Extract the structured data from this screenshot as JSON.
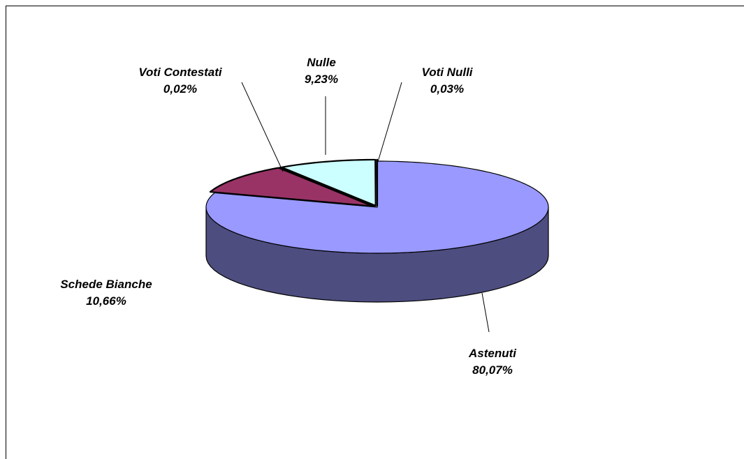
{
  "chart_data": {
    "type": "pie",
    "style": "3d-exploded",
    "slices": [
      {
        "name": "Astenuti",
        "value_label": "80,07%",
        "value": 80.07,
        "color": "#9999ff",
        "side_color": "#4d4d80"
      },
      {
        "name": "Schede Bianche",
        "value_label": "10,66%",
        "value": 10.66,
        "color": "#993366",
        "side_color": "#4d1a33"
      },
      {
        "name": "Voti Contestati",
        "value_label": "0,02%",
        "value": 0.02,
        "color": "#ffffcc",
        "side_color": "#808066"
      },
      {
        "name": "Nulle",
        "value_label": "9,23%",
        "value": 9.23,
        "color": "#ccffff",
        "side_color": "#668080"
      },
      {
        "name": "Voti Nulli",
        "value_label": "0,03%",
        "value": 0.03,
        "color": "#660066",
        "side_color": "#330033"
      }
    ]
  }
}
